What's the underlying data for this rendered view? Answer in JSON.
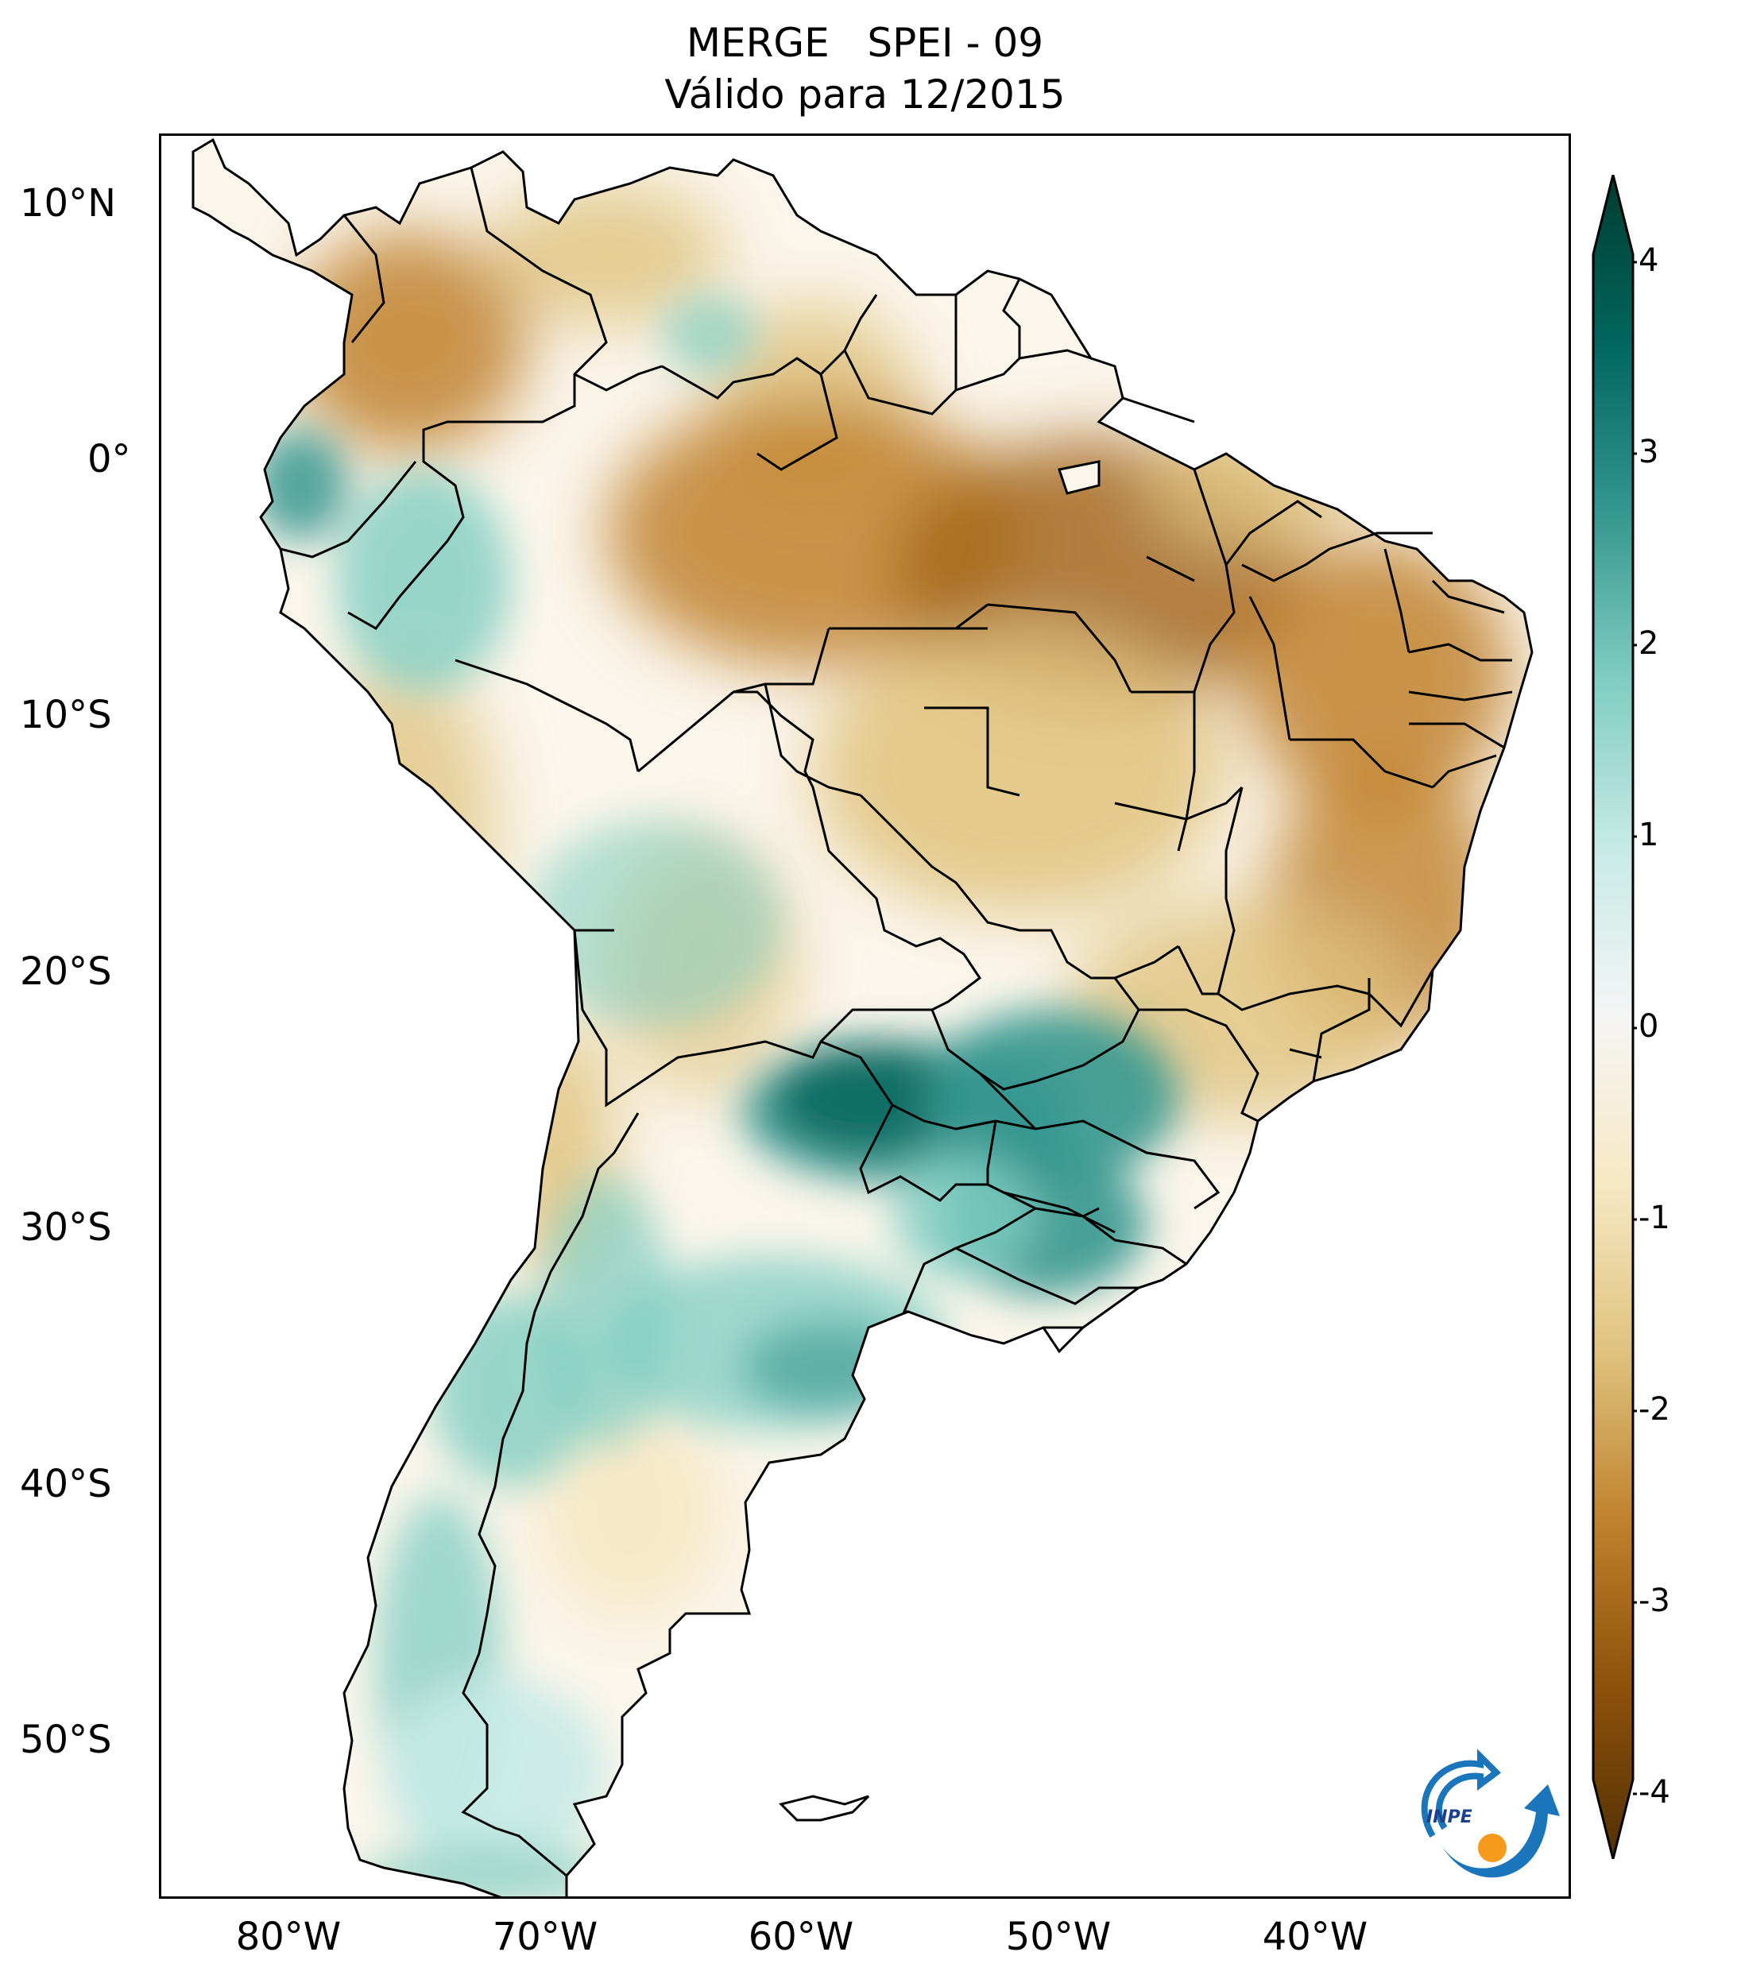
{
  "title": {
    "line1": "MERGE   SPEI - 09",
    "line2": "Válido para 12/2015"
  },
  "map": {
    "lat_labels": [
      "10°N",
      "0°",
      "10°S",
      "20°S",
      "30°S",
      "40°S",
      "50°S"
    ],
    "lon_labels": [
      "80°W",
      "70°W",
      "60°W",
      "50°W",
      "40°W"
    ]
  },
  "colorbar": {
    "ticks": [
      "4",
      "3",
      "2",
      "1",
      "0",
      "-1",
      "-2",
      "-3",
      "-4"
    ],
    "colors": {
      "very_wet": "#003c30",
      "wet": "#01665e",
      "moderate_wet": "#35978f",
      "light_wet": "#80cdc1",
      "slight_wet": "#c7eae5",
      "neutral": "#f5f5f5",
      "slight_dry": "#f6e8c3",
      "light_dry": "#dfc27d",
      "moderate_dry": "#bf812d",
      "dry": "#8c510a",
      "very_dry": "#543005"
    }
  },
  "logo": {
    "text": "INPE"
  }
}
